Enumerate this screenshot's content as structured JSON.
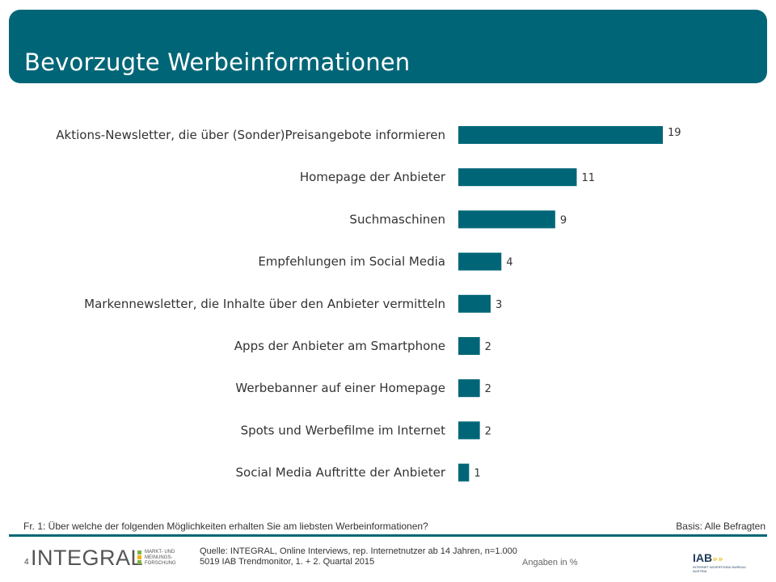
{
  "header": {
    "title": "Bevorzugte Werbeinformationen"
  },
  "colors": {
    "accent": "#006677",
    "bar": "#006677",
    "logo_green": "#7cb342",
    "logo_yellow": "#f0b400"
  },
  "chart_data": {
    "type": "bar",
    "orientation": "horizontal",
    "categories": [
      "Aktions-Newsletter, die über (Sonder)Preisangebote informieren",
      "Homepage der Anbieter",
      "Suchmaschinen",
      "Empfehlungen im Social Media",
      "Markennewsletter, die Inhalte über den Anbieter vermitteln",
      "Apps der Anbieter am Smartphone",
      "Werbebanner auf einer Homepage",
      "Spots und Werbefilme im Internet",
      "Social Media Auftritte der Anbieter"
    ],
    "values": [
      19,
      11,
      9,
      4,
      3,
      2,
      2,
      2,
      1
    ],
    "xlim": [
      0,
      19
    ],
    "grid": false,
    "legend": "none"
  },
  "footer": {
    "question": "Fr. 1: Über welche der folgenden Möglichkeiten erhalten Sie am liebsten Werbeinformationen?",
    "basis": "Basis: Alle Befragten",
    "page_number": "4",
    "logo_text": "INTEGRAL",
    "logo_sub": [
      "MARKT- UND",
      "MEINUNGS-",
      "FORSCHUNG"
    ],
    "source_line1": "Quelle: INTEGRAL, Online Interviews, rep. Internetnutzer ab 14 Jahren, n=1.000",
    "source_line2": "5019 IAB Trendmonitor, 1. + 2. Quartal 2015",
    "angaben": "Angaben in %",
    "iab_logo": "IAB",
    "iab_sub": [
      "INTERNET ADVERTISING BUREAU",
      "AUSTRIA"
    ]
  }
}
